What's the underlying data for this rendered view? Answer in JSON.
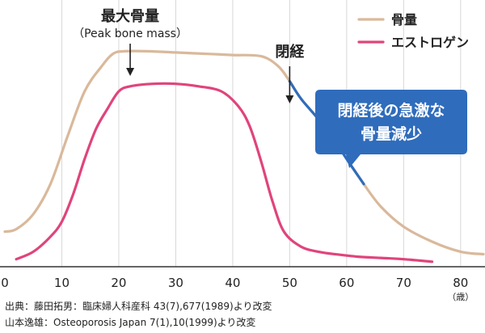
{
  "chart_data": {
    "type": "line",
    "x_ticks": [
      0,
      10,
      20,
      30,
      40,
      50,
      60,
      70,
      80
    ],
    "x_unit": "（歳）",
    "xlim": [
      0,
      84
    ],
    "ylim": [
      0,
      100
    ],
    "grid": "vertical",
    "legend_position": "top-right",
    "series": [
      {
        "name": "骨量",
        "color": "#d9b99b",
        "x": [
          0,
          2,
          5,
          8,
          11,
          14,
          17,
          19,
          21,
          25,
          30,
          35,
          40,
          45,
          48,
          50,
          52,
          55,
          58,
          60,
          63,
          66,
          70,
          75,
          80,
          84
        ],
        "y": [
          14,
          15,
          21,
          33,
          52,
          70,
          80,
          85,
          86,
          86,
          85.5,
          85,
          84.5,
          84,
          80,
          74,
          67,
          59,
          50,
          43,
          33,
          24,
          16,
          10,
          6,
          5
        ]
      },
      {
        "name": "エストロゲン",
        "color": "#e0447c",
        "x": [
          2,
          5,
          8,
          10,
          12,
          14,
          16,
          18,
          20,
          22,
          26,
          30,
          34,
          38,
          41,
          43,
          45,
          47,
          49,
          52,
          55,
          58,
          62,
          66,
          70,
          75
        ],
        "y": [
          3,
          6,
          12,
          18,
          29,
          43,
          55,
          63,
          70,
          72,
          73,
          73,
          72,
          70,
          64,
          56,
          42,
          26,
          14,
          8,
          6,
          5,
          4,
          3.5,
          3,
          2
        ]
      }
    ],
    "highlight_segment": {
      "series": "骨量",
      "x_from": 50,
      "x_to": 63,
      "color": "#2f6cbc"
    },
    "annotations": {
      "peak_title": "最大骨量",
      "peak_subtitle": "（Peak bone mass）",
      "peak_x": 22,
      "menopause_label": "閉経",
      "menopause_x": 50,
      "callout_line1": "閉経後の急激な",
      "callout_line2": "骨量減少",
      "callout_color": "#2f6cbc"
    }
  },
  "sources": {
    "line1": "出典：藤田拓男：臨床婦人科産科 43(7),677(1989)より改変",
    "line2": "山本逸雄：Osteoporosis Japan 7(1),10(1999)より改変"
  }
}
